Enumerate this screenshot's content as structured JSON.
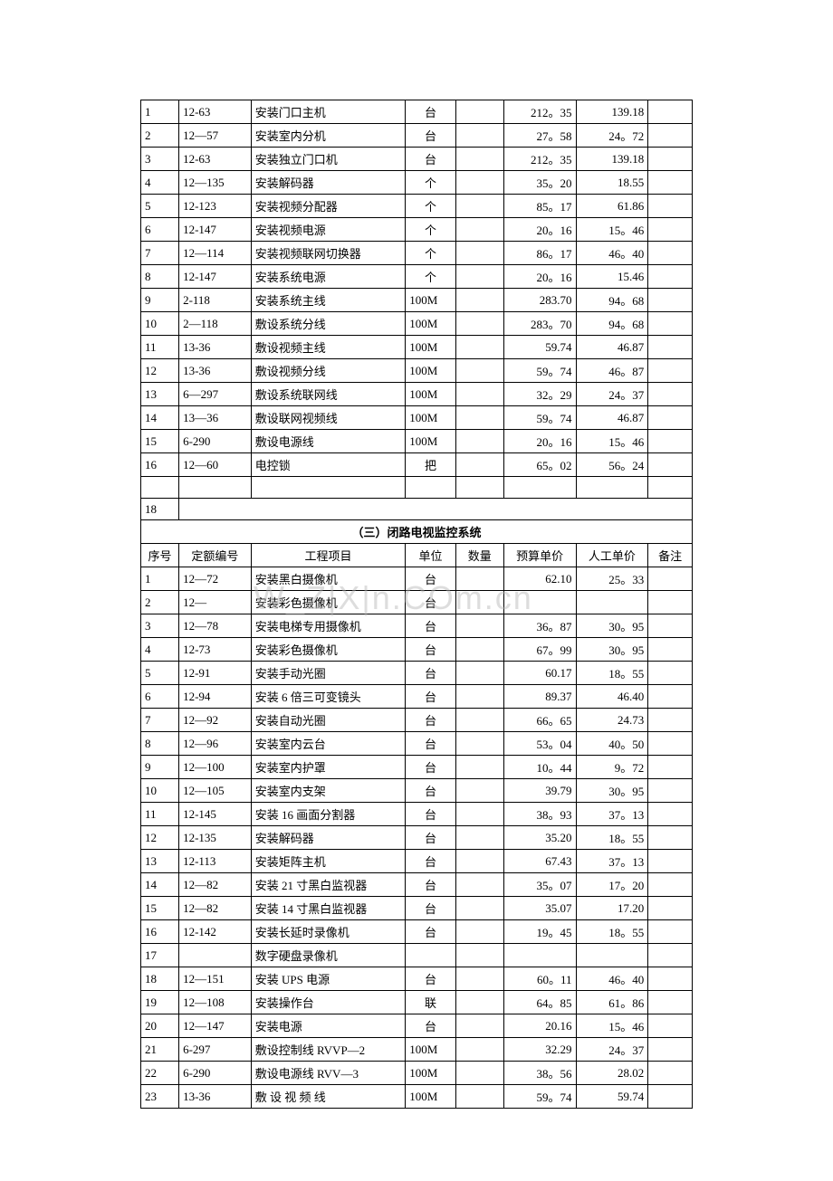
{
  "table1": {
    "rows": [
      {
        "seq": "1",
        "code": "12-63",
        "name": "安装门口主机",
        "unit": "台",
        "qty": "",
        "price": "212。35",
        "labor": "139.18",
        "remark": ""
      },
      {
        "seq": "2",
        "code": "12—57",
        "name": "安装室内分机",
        "unit": "台",
        "qty": "",
        "price": "27。58",
        "labor": "24。72",
        "remark": ""
      },
      {
        "seq": "3",
        "code": "12-63",
        "name": "安装独立门口机",
        "unit": "台",
        "qty": "",
        "price": "212。35",
        "labor": "139.18",
        "remark": ""
      },
      {
        "seq": "4",
        "code": "12—135",
        "name": "安装解码器",
        "unit": "个",
        "qty": "",
        "price": "35。20",
        "labor": "18.55",
        "remark": ""
      },
      {
        "seq": "5",
        "code": "12-123",
        "name": "安装视频分配器",
        "unit": "个",
        "qty": "",
        "price": "85。17",
        "labor": "61.86",
        "remark": ""
      },
      {
        "seq": "6",
        "code": "12-147",
        "name": "安装视频电源",
        "unit": "个",
        "qty": "",
        "price": "20。16",
        "labor": "15。46",
        "remark": ""
      },
      {
        "seq": "7",
        "code": "12—114",
        "name": "安装视频联网切换器",
        "unit": "个",
        "qty": "",
        "price": "86。17",
        "labor": "46。40",
        "remark": ""
      },
      {
        "seq": "8",
        "code": "12-147",
        "name": "安装系统电源",
        "unit": "个",
        "qty": "",
        "price": "20。16",
        "labor": "15.46",
        "remark": ""
      },
      {
        "seq": "9",
        "code": "2-118",
        "name": "安装系统主线",
        "unit": "100M",
        "qty": "",
        "price": "283.70",
        "labor": "94。68",
        "remark": ""
      },
      {
        "seq": "10",
        "code": "2—118",
        "name": "敷设系统分线",
        "unit": "100M",
        "qty": "",
        "price": "283。70",
        "labor": "94。68",
        "remark": ""
      },
      {
        "seq": "11",
        "code": "13-36",
        "name": "敷设视频主线",
        "unit": "100M",
        "qty": "",
        "price": "59.74",
        "labor": "46.87",
        "remark": ""
      },
      {
        "seq": "12",
        "code": "13-36",
        "name": "敷设视频分线",
        "unit": "100M",
        "qty": "",
        "price": "59。74",
        "labor": "46。87",
        "remark": ""
      },
      {
        "seq": "13",
        "code": "6—297",
        "name": "敷设系统联网线",
        "unit": "100M",
        "qty": "",
        "price": "32。29",
        "labor": "24。37",
        "remark": ""
      },
      {
        "seq": "14",
        "code": "13—36",
        "name": "敷设联网视频线",
        "unit": "100M",
        "qty": "",
        "price": "59。74",
        "labor": "46.87",
        "remark": ""
      },
      {
        "seq": "15",
        "code": "6-290",
        "name": "敷设电源线",
        "unit": "100M",
        "qty": "",
        "price": "20。16",
        "labor": "15。46",
        "remark": ""
      },
      {
        "seq": "16",
        "code": "12—60",
        "name": "电控锁",
        "unit": "把",
        "qty": "",
        "price": "65。02",
        "labor": "56。24",
        "remark": ""
      }
    ]
  },
  "section_title": "（三）闭路电视监控系统",
  "headers": {
    "seq": "序号",
    "code": "定额编号",
    "name": "工程项目",
    "unit": "单位",
    "qty": "数量",
    "price": "预算单价",
    "labor": "人工单价",
    "remark": "备注"
  },
  "table2": {
    "rows": [
      {
        "seq": "1",
        "code": "12—72",
        "name": "安装黑白摄像机",
        "unit": "台",
        "qty": "",
        "price": "62.10",
        "labor": "25。33",
        "remark": ""
      },
      {
        "seq": "2",
        "code": "12—",
        "name": "安装彩色摄像机",
        "unit": "台",
        "qty": "",
        "price": "",
        "labor": "",
        "remark": ""
      },
      {
        "seq": "3",
        "code": "12—78",
        "name": "安装电梯专用摄像机",
        "unit": "台",
        "qty": "",
        "price": "36。87",
        "labor": "30。95",
        "remark": ""
      },
      {
        "seq": "4",
        "code": "12-73",
        "name": "安装彩色摄像机",
        "unit": "台",
        "qty": "",
        "price": "67。99",
        "labor": "30。95",
        "remark": ""
      },
      {
        "seq": "5",
        "code": "12-91",
        "name": "安装手动光圈",
        "unit": "台",
        "qty": "",
        "price": "60.17",
        "labor": "18。55",
        "remark": ""
      },
      {
        "seq": "6",
        "code": "12-94",
        "name": "安装 6 倍三可变镜头",
        "unit": "台",
        "qty": "",
        "price": "89.37",
        "labor": "46.40",
        "remark": ""
      },
      {
        "seq": "7",
        "code": "12—92",
        "name": "安装自动光圈",
        "unit": "台",
        "qty": "",
        "price": "66。65",
        "labor": "24.73",
        "remark": ""
      },
      {
        "seq": "8",
        "code": "12—96",
        "name": "安装室内云台",
        "unit": "台",
        "qty": "",
        "price": "53。04",
        "labor": "40。50",
        "remark": ""
      },
      {
        "seq": "9",
        "code": "12—100",
        "name": "安装室内护罩",
        "unit": "台",
        "qty": "",
        "price": "10。44",
        "labor": "9。72",
        "remark": ""
      },
      {
        "seq": "10",
        "code": "12—105",
        "name": "安装室内支架",
        "unit": "台",
        "qty": "",
        "price": "39.79",
        "labor": "30。95",
        "remark": ""
      },
      {
        "seq": "11",
        "code": "12-145",
        "name": "安装 16 画面分割器",
        "unit": "台",
        "qty": "",
        "price": "38。93",
        "labor": "37。13",
        "remark": ""
      },
      {
        "seq": "12",
        "code": "12-135",
        "name": "安装解码器",
        "unit": "台",
        "qty": "",
        "price": "35.20",
        "labor": "18。55",
        "remark": ""
      },
      {
        "seq": "13",
        "code": "12-113",
        "name": "安装矩阵主机",
        "unit": "台",
        "qty": "",
        "price": "67.43",
        "labor": "37。13",
        "remark": ""
      },
      {
        "seq": "14",
        "code": "12—82",
        "name": "安装 21 寸黑白监视器",
        "unit": "台",
        "qty": "",
        "price": "35。07",
        "labor": "17。20",
        "remark": ""
      },
      {
        "seq": "15",
        "code": "12—82",
        "name": "安装 14 寸黑白监视器",
        "unit": "台",
        "qty": "",
        "price": "35.07",
        "labor": "17.20",
        "remark": ""
      },
      {
        "seq": "16",
        "code": "12-142",
        "name": "安装长延时录像机",
        "unit": "台",
        "qty": "",
        "price": "19。45",
        "labor": "18。55",
        "remark": ""
      },
      {
        "seq": "17",
        "code": "",
        "name": "数字硬盘录像机",
        "unit": "",
        "qty": "",
        "price": "",
        "labor": "",
        "remark": ""
      },
      {
        "seq": "18",
        "code": "12—151",
        "name": "安装 UPS 电源",
        "unit": "台",
        "qty": "",
        "price": "60。11",
        "labor": "46。40",
        "remark": ""
      },
      {
        "seq": "19",
        "code": "12—108",
        "name": "安装操作台",
        "unit": "联",
        "qty": "",
        "price": "64。85",
        "labor": "61。86",
        "remark": ""
      },
      {
        "seq": "20",
        "code": "12—147",
        "name": "安装电源",
        "unit": "台",
        "qty": "",
        "price": "20.16",
        "labor": "15。46",
        "remark": ""
      },
      {
        "seq": "21",
        "code": "6-297",
        "name": "敷设控制线 RVVP—2",
        "unit": "100M",
        "qty": "",
        "price": "32.29",
        "labor": "24。37",
        "remark": ""
      },
      {
        "seq": "22",
        "code": "6-290",
        "name": "敷设电源线 RVV—3",
        "unit": "100M",
        "qty": "",
        "price": "38。56",
        "labor": "28.02",
        "remark": ""
      },
      {
        "seq": "23",
        "code": "13-36",
        "name": "敷 设 视 频 线",
        "unit": "100M",
        "qty": "",
        "price": "59。74",
        "labor": "59.74",
        "remark": ""
      }
    ]
  },
  "watermark": "W_Z|X|n.COm.cn",
  "colors": {
    "background": "#ffffff",
    "border": "#000000",
    "text": "#000000",
    "watermark": "rgba(180, 180, 180, 0.45)"
  }
}
